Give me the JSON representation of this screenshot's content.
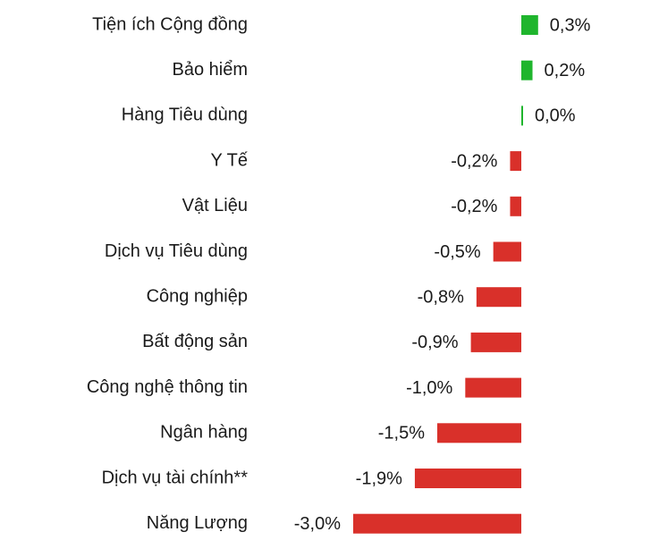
{
  "chart_data": {
    "type": "bar",
    "orientation": "horizontal",
    "categories": [
      "Tiện ích Cộng đồng",
      "Bảo hiểm",
      "Hàng Tiêu dùng",
      "Y Tế",
      "Vật Liệu",
      "Dịch vụ Tiêu dùng",
      "Công nghiệp",
      "Bất động sản",
      "Công nghệ thông tin",
      "Ngân hàng",
      "Dịch vụ tài chính**",
      "Năng Lượng"
    ],
    "values": [
      0.3,
      0.2,
      0.0,
      -0.2,
      -0.2,
      -0.5,
      -0.8,
      -0.9,
      -1.0,
      -1.5,
      -1.9,
      -3.0
    ],
    "value_labels": [
      "0,3%",
      "0,2%",
      "0,0%",
      "-0,2%",
      "-0,2%",
      "-0,5%",
      "-0,8%",
      "-0,9%",
      "-1,0%",
      "-1,5%",
      "-1,9%",
      "-3,0%"
    ],
    "positive_color": "#1fb52d",
    "negative_color": "#d9302a"
  }
}
